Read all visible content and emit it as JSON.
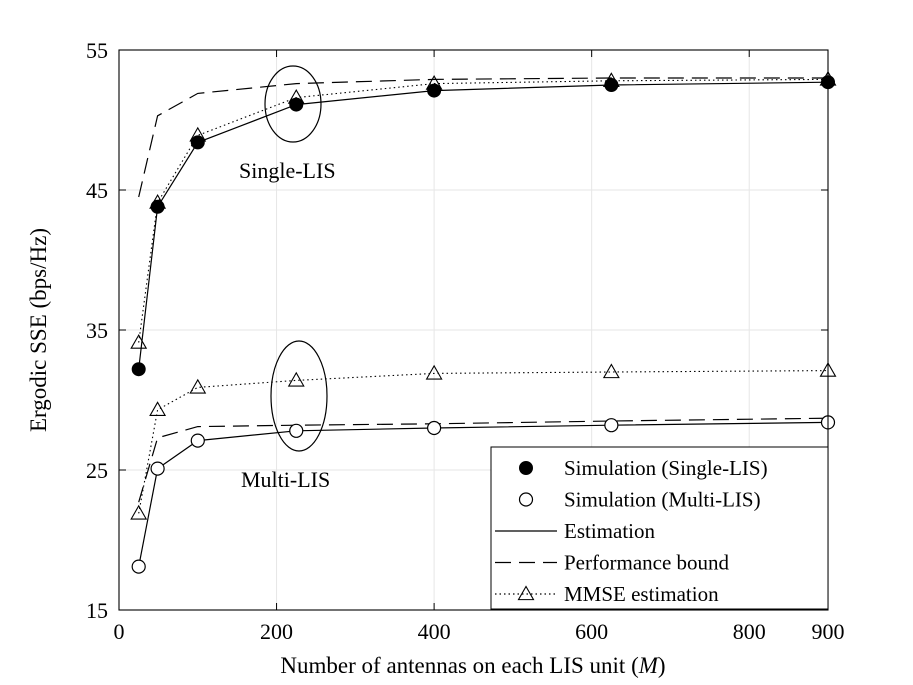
{
  "chart_data": {
    "type": "line",
    "xlabel": "Number of antennas on each LIS unit (",
    "xlabel_var": "M",
    "xlabel_end": ")",
    "ylabel": "Ergodic SSE (bps/Hz)",
    "xlim": [
      0,
      900
    ],
    "ylim": [
      15,
      55
    ],
    "xticks": [
      0,
      200,
      400,
      600,
      800,
      900
    ],
    "yticks": [
      15,
      25,
      35,
      45,
      55
    ],
    "grid": true,
    "legend_position": "bottom-right",
    "annotations": [
      "Single-LIS",
      "Multi-LIS"
    ],
    "x": [
      25,
      49,
      100,
      225,
      400,
      625,
      900
    ],
    "series": [
      {
        "key": "sim_single",
        "name": "Simulation (Single-LIS)",
        "group": "Single-LIS",
        "style": "marker",
        "marker": "filled-circle",
        "values": [
          32.2,
          43.8,
          48.4,
          51.1,
          52.1,
          52.5,
          52.7
        ]
      },
      {
        "key": "est_single",
        "name": "Estimation",
        "group": "Single-LIS",
        "style": "solid",
        "marker": "none",
        "values": [
          32.2,
          43.8,
          48.4,
          51.1,
          52.1,
          52.5,
          52.7
        ]
      },
      {
        "key": "bound_single",
        "name": "Performance bound",
        "group": "Single-LIS",
        "style": "dashed",
        "marker": "none",
        "values": [
          44.5,
          50.3,
          51.9,
          52.6,
          52.9,
          53.0,
          53.0
        ]
      },
      {
        "key": "mmse_single",
        "name": "MMSE estimation",
        "group": "Single-LIS",
        "style": "dotted",
        "marker": "triangle",
        "values": [
          34.1,
          44.1,
          48.9,
          51.6,
          52.6,
          52.8,
          52.9
        ]
      },
      {
        "key": "sim_multi",
        "name": "Simulation (Multi-LIS)",
        "group": "Multi-LIS",
        "style": "marker",
        "marker": "open-circle",
        "values": [
          18.1,
          25.1,
          27.1,
          27.8,
          28.0,
          28.2,
          28.4
        ]
      },
      {
        "key": "est_multi",
        "name": "Estimation",
        "group": "Multi-LIS",
        "style": "solid",
        "marker": "none",
        "values": [
          18.1,
          25.1,
          27.1,
          27.8,
          28.0,
          28.2,
          28.4
        ]
      },
      {
        "key": "bound_multi",
        "name": "Performance bound",
        "group": "Multi-LIS",
        "style": "dashed",
        "marker": "none",
        "values": [
          22.7,
          27.3,
          28.1,
          28.2,
          28.3,
          28.5,
          28.7
        ]
      },
      {
        "key": "mmse_multi",
        "name": "MMSE estimation",
        "group": "Multi-LIS",
        "style": "dotted",
        "marker": "triangle",
        "values": [
          21.9,
          29.3,
          30.9,
          31.4,
          31.9,
          32.0,
          32.1
        ]
      }
    ],
    "legend": [
      {
        "label": "Simulation (Single-LIS)",
        "line": "none",
        "marker": "filled-circle"
      },
      {
        "label": "Simulation (Multi-LIS)",
        "line": "none",
        "marker": "open-circle"
      },
      {
        "label": "Estimation",
        "line": "solid",
        "marker": "none"
      },
      {
        "label": "Performance bound",
        "line": "dashed",
        "marker": "none"
      },
      {
        "label": "MMSE estimation",
        "line": "dotted",
        "marker": "triangle"
      }
    ],
    "colors": {
      "axis": "#000000",
      "grid": "#e6e6e6",
      "background": "#ffffff"
    }
  }
}
